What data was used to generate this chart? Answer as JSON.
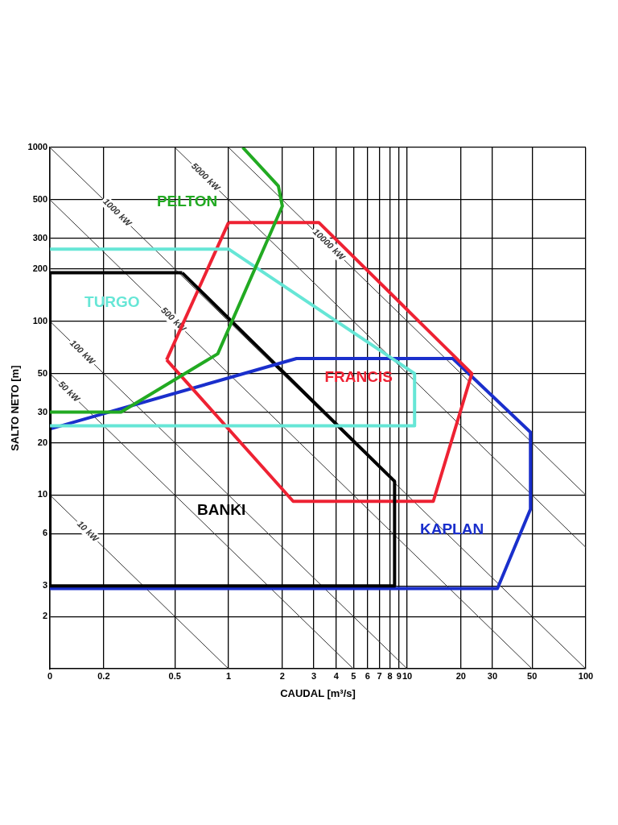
{
  "chart_data": {
    "type": "line",
    "xlabel": "CAUDAL [m³/s]",
    "ylabel": "SALTO NETO [m]",
    "log": "xy",
    "grid": true,
    "legend": false,
    "marker": "none",
    "xlim": [
      0.1,
      100
    ],
    "xticks": [
      {
        "value": 0.1,
        "label": "0"
      },
      0.2,
      0.5,
      1,
      2,
      3,
      4,
      5,
      6,
      7,
      8,
      9,
      10,
      20,
      30,
      50,
      100
    ],
    "ylim": [
      1,
      1000
    ],
    "yticks": [
      2,
      3,
      6,
      10,
      20,
      30,
      50,
      100,
      200,
      300,
      500,
      1000
    ],
    "series": [
      {
        "name": "10 kW",
        "color": "#333333",
        "x": [
          0.1,
          1
        ],
        "values": [
          10,
          1
        ]
      },
      {
        "name": "50 kW",
        "color": "#333333",
        "x": [
          0.1,
          5
        ],
        "values": [
          50,
          1
        ]
      },
      {
        "name": "100 kW",
        "color": "#333333",
        "x": [
          0.1,
          10
        ],
        "values": [
          100,
          1
        ]
      },
      {
        "name": "500 kW",
        "color": "#333333",
        "x": [
          0.1,
          50
        ],
        "values": [
          500,
          1
        ]
      },
      {
        "name": "1000 kW",
        "color": "#333333",
        "x": [
          0.1,
          100
        ],
        "values": [
          1000,
          1
        ]
      },
      {
        "name": "5000 kW",
        "color": "#333333",
        "x": [
          0.5,
          100
        ],
        "values": [
          1000,
          5
        ]
      },
      {
        "name": "10000 kW",
        "color": "#333333",
        "x": [
          1,
          100
        ],
        "values": [
          1000,
          10
        ]
      },
      {
        "name": "PELTON",
        "color": "#22aa22",
        "x": [
          0.1,
          0.25,
          0.87,
          2,
          1.9,
          1.2
        ],
        "values": [
          30,
          30,
          65,
          460,
          600,
          1000
        ]
      },
      {
        "name": "TURGO",
        "color": "#66e6d6",
        "x": [
          0.1,
          1,
          11,
          11,
          0.1
        ],
        "values": [
          260,
          260,
          50,
          25,
          25
        ]
      },
      {
        "name": "BANKI",
        "color": "#000000",
        "x": [
          8.5,
          8.5,
          0.1,
          0.1,
          0.55
        ],
        "values": [
          12,
          3,
          3,
          190,
          190
        ]
      },
      {
        "name": "FRANCIS",
        "color": "#ee2233",
        "x": [
          1,
          3.2,
          23,
          14,
          2.3,
          0.45
        ],
        "values": [
          370,
          370,
          50,
          9.2,
          9.2,
          60
        ]
      },
      {
        "name": "KAPLAN",
        "color": "#1a2fcc",
        "x": [
          0.1,
          2.4,
          18,
          49,
          49,
          32,
          0.1
        ],
        "values": [
          24,
          61,
          61,
          23,
          8.3,
          2.9,
          2.9
        ]
      },
      {
        "color": "#000000",
        "x": [
          0.55,
          8.5
        ],
        "values": [
          190,
          12
        ]
      },
      {
        "color": "#ee2233",
        "x": [
          0.45,
          1
        ],
        "values": [
          60,
          370
        ]
      }
    ]
  }
}
